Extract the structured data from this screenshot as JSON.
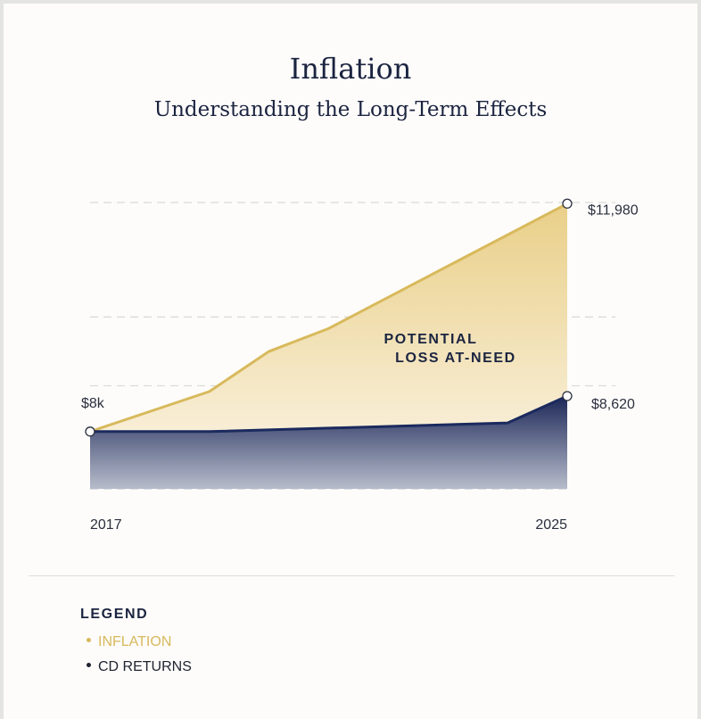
{
  "title": "Inflation",
  "subtitle": "Understanding the Long-Term Effects",
  "colors": {
    "inflation": "#d8b95c",
    "cd_returns": "#1b2a5e",
    "background": "#fdfcfa"
  },
  "chart_data": {
    "type": "area",
    "x": [
      2017,
      2019,
      2020,
      2021,
      2024,
      2025
    ],
    "xlim": [
      2017,
      2025
    ],
    "x_tick_labels": [
      "2017",
      "2025"
    ],
    "ylim": [
      7000,
      12000
    ],
    "grid": true,
    "series": [
      {
        "name": "INFLATION",
        "color": "#d8b95c",
        "points": [
          [
            2017,
            8000
          ],
          [
            2019,
            8700
          ],
          [
            2020,
            9400
          ],
          [
            2021,
            9800
          ],
          [
            2025,
            11980
          ]
        ]
      },
      {
        "name": "CD RETURNS",
        "color": "#1b2a5e",
        "points": [
          [
            2017,
            8000
          ],
          [
            2019,
            8000
          ],
          [
            2024,
            8150
          ],
          [
            2025,
            8620
          ]
        ]
      }
    ],
    "labels": {
      "start": "$8k",
      "inflation_end": "$11,980",
      "cd_end": "$8,620"
    },
    "annotation": [
      "POTENTIAL",
      "LOSS AT-NEED"
    ]
  },
  "legend": {
    "title": "LEGEND",
    "items": [
      {
        "label": "INFLATION",
        "color": "#d8b95c"
      },
      {
        "label": "CD RETURNS",
        "color": "#1b2a5e"
      }
    ]
  }
}
